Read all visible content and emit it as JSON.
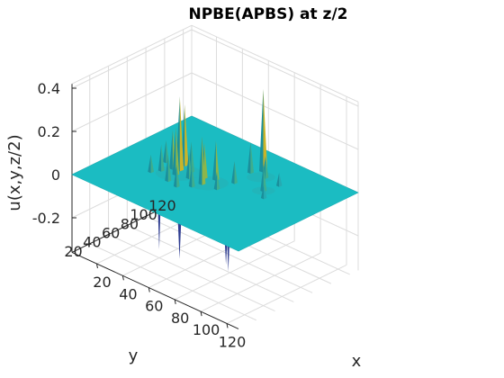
{
  "chart_data": {
    "type": "surface",
    "title": "NPBE(APBS) at z/2",
    "xlabel": "x",
    "ylabel": "y",
    "zlabel": "u(x,y,z/2)",
    "x_ticks": [
      "20",
      "40",
      "60",
      "80",
      "100",
      "120"
    ],
    "y_ticks": [
      "20",
      "40",
      "60",
      "80",
      "100",
      "120"
    ],
    "z_ticks": [
      "-0.2",
      "0",
      "0.2",
      "0.4"
    ],
    "xlim": [
      1,
      129
    ],
    "ylim": [
      1,
      129
    ],
    "zlim": [
      -0.36,
      0.42
    ],
    "grid": true,
    "colormap": "parula",
    "baseline_value": 0,
    "peaks": [
      {
        "x": 40,
        "y": 62,
        "z": 0.34
      },
      {
        "x": 38,
        "y": 70,
        "z": 0.28
      },
      {
        "x": 42,
        "y": 55,
        "z": 0.22
      },
      {
        "x": 36,
        "y": 60,
        "z": 0.18
      },
      {
        "x": 46,
        "y": 66,
        "z": 0.14
      },
      {
        "x": 33,
        "y": 52,
        "z": 0.12
      },
      {
        "x": 50,
        "y": 58,
        "z": 0.12
      },
      {
        "x": 56,
        "y": 66,
        "z": 0.16
      },
      {
        "x": 60,
        "y": 58,
        "z": 0.22
      },
      {
        "x": 62,
        "y": 70,
        "z": 0.18
      },
      {
        "x": 58,
        "y": 50,
        "z": 0.1
      },
      {
        "x": 44,
        "y": 44,
        "z": 0.12
      },
      {
        "x": 52,
        "y": 42,
        "z": 0.1
      },
      {
        "x": 30,
        "y": 45,
        "z": 0.08
      },
      {
        "x": 28,
        "y": 64,
        "z": 0.1
      },
      {
        "x": 70,
        "y": 60,
        "z": 0.08
      },
      {
        "x": 72,
        "y": 76,
        "z": 0.1
      },
      {
        "x": 74,
        "y": 104,
        "z": 0.38
      },
      {
        "x": 70,
        "y": 96,
        "z": 0.14
      },
      {
        "x": 80,
        "y": 98,
        "z": 0.1
      },
      {
        "x": 90,
        "y": 82,
        "z": 0.12
      },
      {
        "x": 92,
        "y": 96,
        "z": 0.06
      },
      {
        "x": 96,
        "y": 74,
        "z": 0.06
      },
      {
        "x": 40,
        "y": 40,
        "z": -0.32
      },
      {
        "x": 70,
        "y": 20,
        "z": -0.24
      },
      {
        "x": 96,
        "y": 36,
        "z": -0.26
      },
      {
        "x": 100,
        "y": 28,
        "z": -0.2
      }
    ]
  }
}
